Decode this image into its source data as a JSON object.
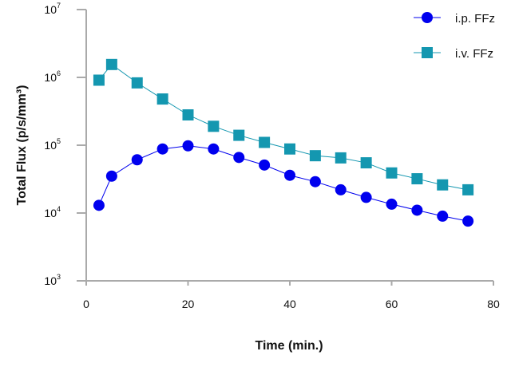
{
  "chart_data": {
    "type": "line",
    "title": "",
    "xlabel": "Time (min.)",
    "ylabel": "Total Flux (p/s/mm³)",
    "xlim": [
      0,
      80
    ],
    "ylim": [
      1000,
      10000000
    ],
    "yscale": "log",
    "grid": false,
    "legend_placement": "top-right",
    "x_ticks": [
      0,
      20,
      40,
      60,
      80
    ],
    "y_ticks": [
      {
        "base": "10",
        "exp": "3",
        "value": 1000
      },
      {
        "base": "10",
        "exp": "4",
        "value": 10000
      },
      {
        "base": "10",
        "exp": "5",
        "value": 100000
      },
      {
        "base": "10",
        "exp": "6",
        "value": 1000000
      },
      {
        "base": "10",
        "exp": "7",
        "value": 10000000
      }
    ],
    "x": [
      2.5,
      5,
      10,
      15,
      20,
      25,
      30,
      35,
      40,
      45,
      50,
      55,
      60,
      65,
      70,
      75
    ],
    "series": [
      {
        "name": "i.p. FFz",
        "marker": "circle",
        "color": "#0000ee",
        "values": [
          13000,
          35000,
          61000,
          88000,
          98000,
          88000,
          66000,
          51000,
          36000,
          29000,
          22000,
          17000,
          13500,
          11000,
          9000,
          7600
        ]
      },
      {
        "name": "i.v. FFz",
        "marker": "square",
        "color": "#1497b0",
        "values": [
          910000,
          1550000,
          830000,
          480000,
          280000,
          190000,
          140000,
          110000,
          88000,
          70000,
          65000,
          55000,
          39000,
          32000,
          26000,
          22000
        ]
      }
    ]
  }
}
